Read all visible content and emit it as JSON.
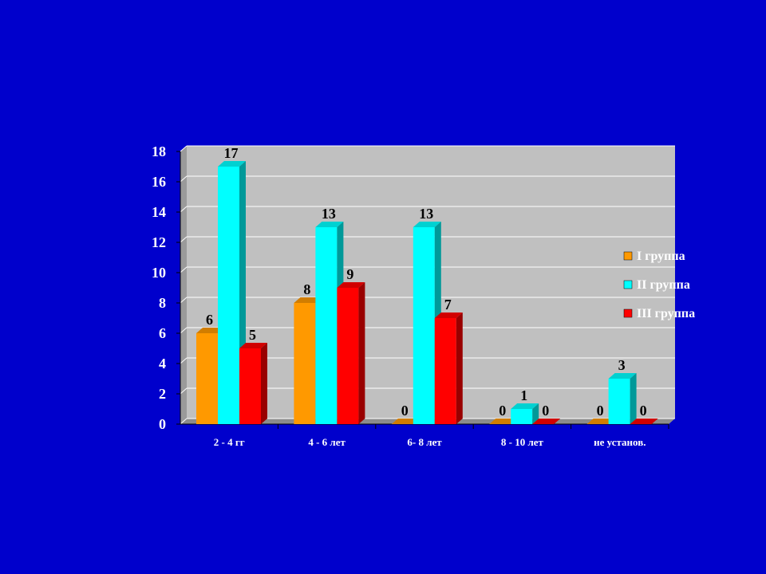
{
  "slide": {
    "background": "#0000cc"
  },
  "chart_data": {
    "type": "bar",
    "categories": [
      "2 - 4 гг",
      "4 - 6 лет",
      "6- 8 лет",
      "8 - 10 лет",
      "не установ."
    ],
    "series": [
      {
        "name": "I группа",
        "color": "#ff9900",
        "values": [
          6,
          8,
          0,
          0,
          0
        ]
      },
      {
        "name": "II группа",
        "color": "#00ffff",
        "values": [
          17,
          13,
          13,
          1,
          3
        ]
      },
      {
        "name": "III группа",
        "color": "#ff0000",
        "values": [
          5,
          9,
          7,
          0,
          0
        ]
      }
    ],
    "yticks": [
      "0",
      "2",
      "4",
      "6",
      "8",
      "10",
      "12",
      "14",
      "16",
      "18"
    ],
    "ylim": [
      0,
      18
    ],
    "grid": true,
    "legend": "right",
    "plot_background": "#c0c0c0",
    "wall_color": "#9a9a9a"
  }
}
